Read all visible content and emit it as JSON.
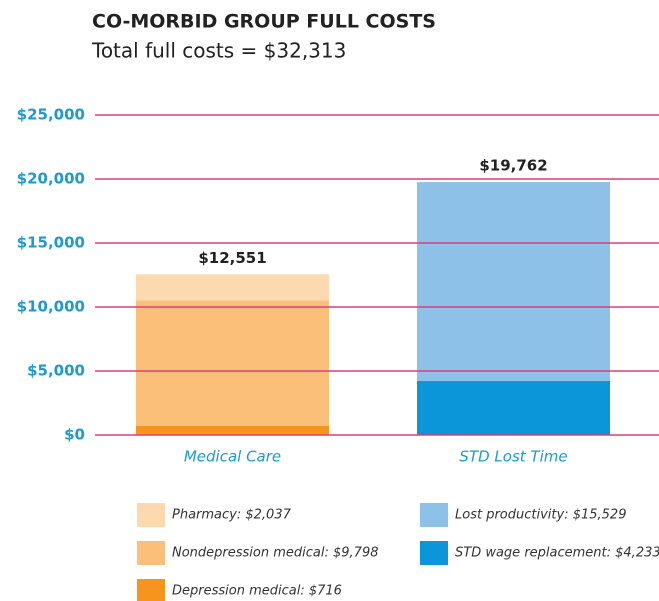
{
  "chart_data": {
    "type": "stacked_bar",
    "title": "CO-MORBID GROUP FULL COSTS",
    "subtitle": "Total full costs = $32,313",
    "categories": [
      "Medical Care",
      "STD Lost Time"
    ],
    "series": [
      {
        "name": "Pharmacy: $2,037",
        "color": "#fdd9b0",
        "values": [
          2037,
          null
        ]
      },
      {
        "name": "Nondepression medical: $9,798",
        "color": "#fbbf7a",
        "values": [
          9798,
          null
        ]
      },
      {
        "name": "Depression medical: $716",
        "color": "#f7941d",
        "values": [
          716,
          null
        ]
      },
      {
        "name": "Lost productivity: $15,529",
        "color": "#8ec1e8",
        "values": [
          null,
          15529
        ]
      },
      {
        "name": "STD wage replacement: $4,233",
        "color": "#0a96d9",
        "values": [
          null,
          4233
        ]
      }
    ],
    "totals": [
      12551,
      19762
    ],
    "total_labels": [
      "$12,551",
      "$19,762"
    ],
    "ylim": [
      0,
      25000
    ],
    "yticks": [
      {
        "value": 0,
        "label": "$0"
      },
      {
        "value": 5000,
        "label": "$5,000"
      },
      {
        "value": 10000,
        "label": "$10,000"
      },
      {
        "value": 15000,
        "label": "$15,000"
      },
      {
        "value": 20000,
        "label": "$20,000"
      },
      {
        "value": 25000,
        "label": "$25,000"
      }
    ],
    "grid": true,
    "grid_color": "#d9407a"
  }
}
